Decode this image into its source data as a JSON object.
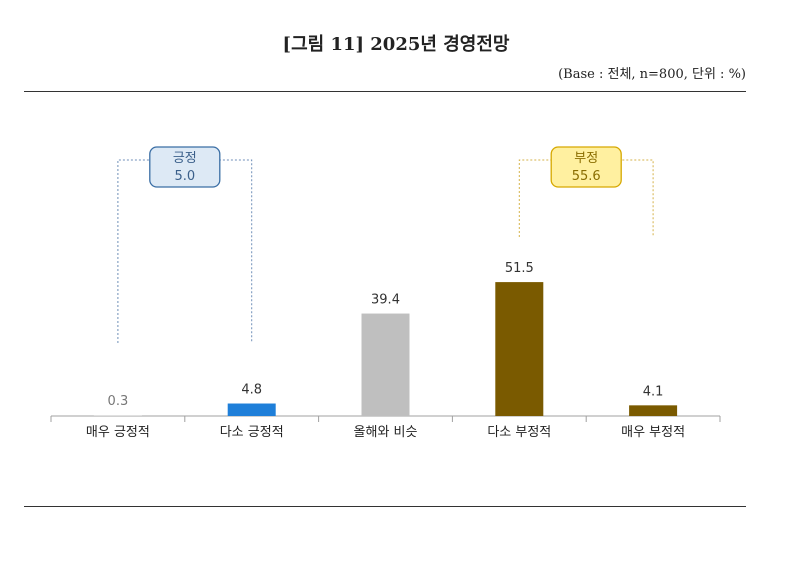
{
  "header": {
    "title": "[그림 11] 2025년 경영전망",
    "base_note": "(Base : 전체, n=800, 단위 : %)"
  },
  "chart_data": {
    "type": "bar",
    "categories": [
      "매우 긍정적",
      "다소 긍정적",
      "올해와 비슷",
      "다소 부정적",
      "매우 부정적"
    ],
    "values": [
      0.3,
      4.8,
      39.4,
      51.5,
      4.1
    ],
    "value_labels": [
      "0.3",
      "4.8",
      "39.4",
      "51.5",
      "4.1"
    ],
    "colors": [
      "#d9d9d9",
      "#1f7fd9",
      "#bfbfbf",
      "#7a5a00",
      "#7a5a00"
    ],
    "ylim": [
      0,
      60
    ],
    "grid": false,
    "groups": [
      {
        "label": "긍정",
        "value": "5.0",
        "fill": "#dde9f5",
        "stroke": "#3a6ea5",
        "text_color": "#3a5f8a",
        "line_color": "#6f8fb8",
        "from": 0,
        "to": 1
      },
      {
        "label": "부정",
        "value": "55.6",
        "fill": "#fff0a0",
        "stroke": "#d6a800",
        "text_color": "#8a6d00",
        "line_color": "#d6b24a",
        "from": 3,
        "to": 4
      }
    ]
  }
}
